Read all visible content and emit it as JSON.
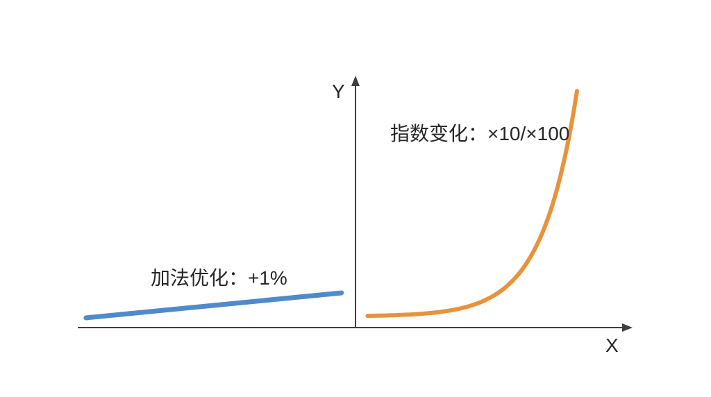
{
  "labels": {
    "y_axis": "Y",
    "x_axis": "X",
    "exponential_annotation": "指数变化：×10/×100",
    "additive_annotation": "加法优化：+1%"
  },
  "colors": {
    "axis": "#3f3f3f",
    "additive_line": "#4F8BC9",
    "exponential_curve": "#E8933C",
    "text": "#262626",
    "background": "#ffffff"
  },
  "chart_data": {
    "type": "line",
    "title": "",
    "xlabel": "X",
    "ylabel": "Y",
    "grid": false,
    "tick_labels": "none (conceptual diagram)",
    "annotations": [
      {
        "text": "加法优化：+1%",
        "series": "additive"
      },
      {
        "text": "指数变化：×10/×100",
        "series": "exponential"
      }
    ],
    "series": [
      {
        "name": "加法优化：+1%",
        "kind": "linear",
        "color": "#4F8BC9",
        "stroke_width": 7,
        "x_start_norm": 0.015,
        "x_end_norm": 0.476,
        "y_start_norm": 0.039,
        "y_end_norm": 0.139
      },
      {
        "name": "指数变化：×10/×100",
        "kind": "exponential",
        "color": "#E8933C",
        "stroke_width": 6,
        "growth_rate": 6,
        "x_start_norm": 0.523,
        "x_end_norm": 0.901,
        "y_start_norm": 0.047,
        "y_end_norm": 0.947
      }
    ]
  }
}
